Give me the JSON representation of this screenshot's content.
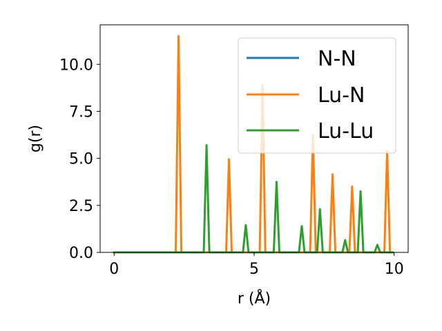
{
  "chart_data": {
    "type": "line",
    "title": "",
    "xlabel": "r (Å)",
    "ylabel": "g(r)",
    "xlim": [
      -0.5,
      10.5
    ],
    "ylim": [
      0,
      12.1
    ],
    "xticks": [
      0,
      5,
      10
    ],
    "xtick_labels": [
      "0",
      "5",
      "10"
    ],
    "yticks": [
      0.0,
      2.5,
      5.0,
      7.5,
      10.0
    ],
    "ytick_labels": [
      "0.0",
      "2.5",
      "5.0",
      "7.5",
      "10.0"
    ],
    "grid": false,
    "legend_position": "top-right",
    "series": [
      {
        "name": "N-N",
        "color": "#1f77b4",
        "x": [
          0,
          9.95
        ],
        "y": [
          0,
          0
        ],
        "peaks": []
      },
      {
        "name": "Lu-N",
        "color": "#ff7f0e",
        "x": [
          0,
          9.95
        ],
        "y": [
          0,
          0
        ],
        "peaks": [
          {
            "r": 2.3,
            "g": 11.5
          },
          {
            "r": 4.1,
            "g": 4.95
          },
          {
            "r": 5.3,
            "g": 8.9
          },
          {
            "r": 7.1,
            "g": 6.25
          },
          {
            "r": 7.8,
            "g": 4.15
          },
          {
            "r": 8.5,
            "g": 3.5
          },
          {
            "r": 9.75,
            "g": 5.4
          }
        ]
      },
      {
        "name": "Lu-Lu",
        "color": "#2ca02c",
        "x": [
          0,
          9.95
        ],
        "y": [
          0,
          0
        ],
        "peaks": [
          {
            "r": 3.3,
            "g": 5.7
          },
          {
            "r": 4.7,
            "g": 1.45
          },
          {
            "r": 5.8,
            "g": 3.75
          },
          {
            "r": 6.7,
            "g": 1.4
          },
          {
            "r": 7.35,
            "g": 2.3
          },
          {
            "r": 8.25,
            "g": 0.65
          },
          {
            "r": 8.8,
            "g": 3.25
          },
          {
            "r": 9.4,
            "g": 0.4
          }
        ]
      }
    ]
  }
}
